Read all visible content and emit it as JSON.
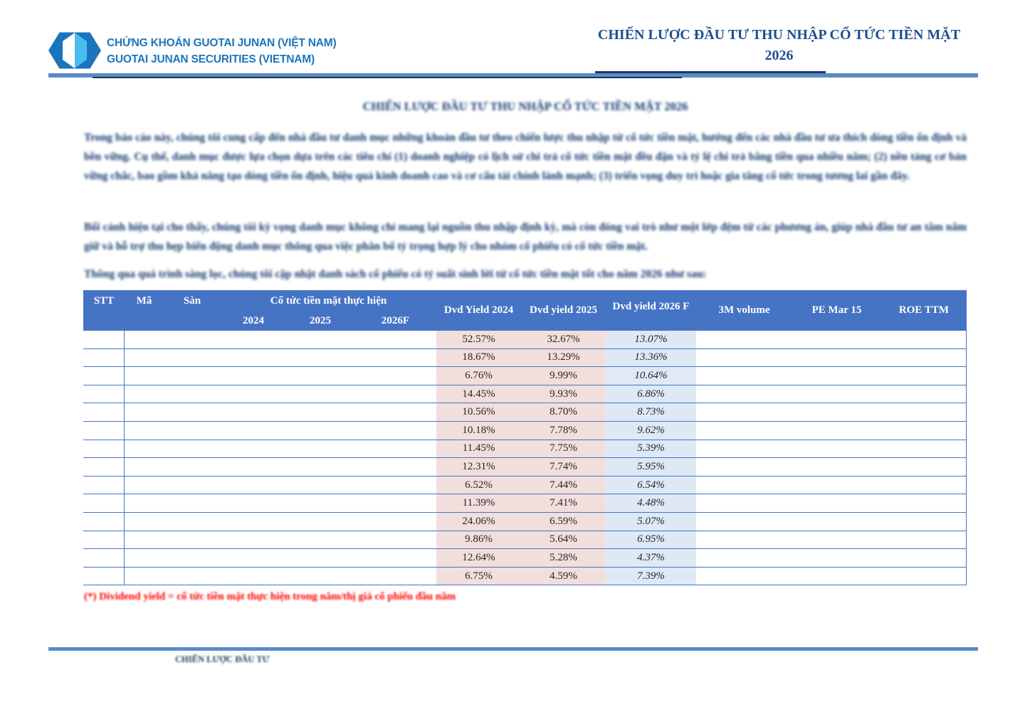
{
  "header": {
    "logo": {
      "icon": "gem-hexagon-logo",
      "name_vi": "CHỨNG KHOÁN GUOTAI JUNAN (VIỆT NAM)",
      "name_en": "GUOTAI JUNAN SECURITIES (VIETNAM)"
    },
    "title_line1": "CHIẾN LƯỢC ĐẦU TƯ THU NHẬP CỔ TỨC TIỀN MẶT",
    "title_line2": "2026"
  },
  "article": {
    "heading": "CHIẾN LƯỢC ĐẦU TƯ THU NHẬP CỔ TỨC TIỀN MẶT 2026",
    "paragraph_1": "Trong báo cáo này, chúng tôi cung cấp đến nhà đầu tư danh mục những khoản đầu tư theo chiến lược thu nhập từ cổ tức tiền mặt, hướng đến các nhà đầu tư ưa thích dòng tiền ổn định và bền vững. Cụ thể, danh mục được lựa chọn dựa trên các tiêu chí (1) doanh nghiệp có lịch sử chi trả cổ tức tiền mặt đều đặn và tỷ lệ chi trả bằng tiền qua nhiều năm; (2) nền tảng cơ bản vững chắc, bao gồm khả năng tạo dòng tiền ổn định, hiệu quả kinh doanh cao và cơ cấu tài chính lành mạnh; (3) triển vọng duy trì hoặc gia tăng cổ tức trong tương lai gần đây.",
    "paragraph_2": "Bối cảnh hiện tại cho thấy, chúng tôi kỳ vọng danh mục không chỉ mang lại nguồn thu nhập định kỳ, mà còn đóng vai trò như một lớp đệm từ các phương án, giúp nhà đầu tư an tâm nắm giữ và hỗ trợ thu hẹp biến động danh mục thông qua việc phân bổ tỷ trọng hợp lý cho nhóm cổ phiếu có cổ tức tiền mặt.",
    "paragraph_3": "Thông qua quá trình sàng lọc, chúng tôi cập nhật danh sách cổ phiếu có tỷ suất sinh lời từ cổ tức tiền mặt tốt cho năm 2026 như sau:",
    "footnote": "(*) Dividend yield = cổ tức tiền mặt thực hiện trong năm/thị giá cổ phiếu đầu năm"
  },
  "table": {
    "header": {
      "stt": "STT",
      "ma": "Mã",
      "san": "Sàn",
      "group": "Cổ tức tiền mặt thực hiện",
      "y2024": "2024",
      "y2025": "2025",
      "y2026f": "2026F",
      "dvd_yield_2024": "Dvd Yield 2024",
      "dvd_yield_2025": "Dvd yield 2025",
      "dvd_yield_2026f": "Dvd yield 2026 F",
      "vol_3m": "3M volume",
      "pe": "PE Mar 15",
      "roe": "ROE TTM"
    },
    "rows": [
      {
        "dvd_yield_2024": "52.57%",
        "dvd_yield_2025": "32.67%",
        "dvd_yield_2026f": "13.07%"
      },
      {
        "dvd_yield_2024": "18.67%",
        "dvd_yield_2025": "13.29%",
        "dvd_yield_2026f": "13.36%"
      },
      {
        "dvd_yield_2024": "6.76%",
        "dvd_yield_2025": "9.99%",
        "dvd_yield_2026f": "10.64%"
      },
      {
        "dvd_yield_2024": "14.45%",
        "dvd_yield_2025": "9.93%",
        "dvd_yield_2026f": "6.86%"
      },
      {
        "dvd_yield_2024": "10.56%",
        "dvd_yield_2025": "8.70%",
        "dvd_yield_2026f": "8.73%"
      },
      {
        "dvd_yield_2024": "10.18%",
        "dvd_yield_2025": "7.78%",
        "dvd_yield_2026f": "9.62%"
      },
      {
        "dvd_yield_2024": "11.45%",
        "dvd_yield_2025": "7.75%",
        "dvd_yield_2026f": "5.39%"
      },
      {
        "dvd_yield_2024": "12.31%",
        "dvd_yield_2025": "7.74%",
        "dvd_yield_2026f": "5.95%"
      },
      {
        "dvd_yield_2024": "6.52%",
        "dvd_yield_2025": "7.44%",
        "dvd_yield_2026f": "6.54%"
      },
      {
        "dvd_yield_2024": "11.39%",
        "dvd_yield_2025": "7.41%",
        "dvd_yield_2026f": "4.48%"
      },
      {
        "dvd_yield_2024": "24.06%",
        "dvd_yield_2025": "6.59%",
        "dvd_yield_2026f": "5.07%"
      },
      {
        "dvd_yield_2024": "9.86%",
        "dvd_yield_2025": "5.64%",
        "dvd_yield_2026f": "6.95%"
      },
      {
        "dvd_yield_2024": "12.64%",
        "dvd_yield_2025": "5.28%",
        "dvd_yield_2026f": "4.37%"
      },
      {
        "dvd_yield_2024": "6.75%",
        "dvd_yield_2025": "4.59%",
        "dvd_yield_2026f": "7.39%"
      }
    ]
  },
  "footer": {
    "label": "CHIẾN LƯỢC ĐẦU TƯ"
  },
  "colors": {
    "table_header_blue": "#4674C5",
    "pink_cell": "#F2DEDC",
    "blue_cell": "#DEE9F5",
    "navy_text": "#12386E",
    "steel_rule": "#5C8BC6",
    "logo_blue": "#1B75BC",
    "gem_light_blue": "#49BDF0",
    "title_navy": "#1E4F91",
    "note_red": "#FF0000"
  }
}
